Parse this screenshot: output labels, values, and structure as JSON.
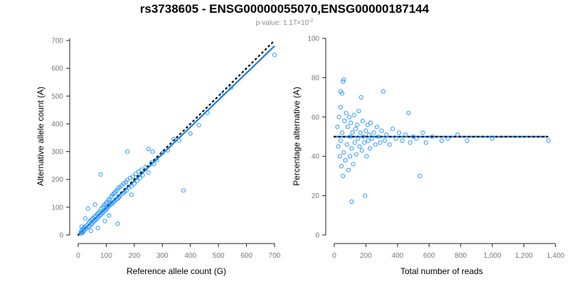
{
  "title": "rs3738605 - ENSG00000055070,ENSG00000187144",
  "subtitle": {
    "prefix": "p-value: 1.17×10",
    "exponent": "-2"
  },
  "colors": {
    "points": "#1e90ff",
    "fit_line": "#1e7fd4",
    "reference_line": "#000000"
  },
  "chart_data": [
    {
      "type": "scatter",
      "xlabel": "Reference allele count (G)",
      "ylabel": "Alternative allele count (A)",
      "xlim": [
        0,
        700
      ],
      "ylim": [
        0,
        700
      ],
      "xticks": [
        0,
        100,
        200,
        300,
        400,
        500,
        600,
        700
      ],
      "yticks": [
        0,
        100,
        200,
        300,
        400,
        500,
        600,
        700
      ],
      "xtick_labels": [
        "0",
        "100",
        "200",
        "300",
        "400",
        "500",
        "600",
        "700"
      ],
      "ytick_labels": [
        "0",
        "100",
        "200",
        "300",
        "400",
        "500",
        "600",
        "700"
      ],
      "grid": false,
      "fit_line": [
        [
          5,
          5
        ],
        [
          700,
          680
        ]
      ],
      "reference_line": [
        [
          0,
          0
        ],
        [
          700,
          700
        ]
      ],
      "points": [
        [
          8,
          6
        ],
        [
          10,
          14
        ],
        [
          12,
          9
        ],
        [
          15,
          20
        ],
        [
          18,
          12
        ],
        [
          20,
          25
        ],
        [
          22,
          17
        ],
        [
          25,
          30
        ],
        [
          28,
          22
        ],
        [
          30,
          35
        ],
        [
          12,
          30
        ],
        [
          15,
          8
        ],
        [
          35,
          28
        ],
        [
          38,
          45
        ],
        [
          40,
          32
        ],
        [
          42,
          50
        ],
        [
          45,
          38
        ],
        [
          48,
          55
        ],
        [
          50,
          42
        ],
        [
          52,
          60
        ],
        [
          55,
          48
        ],
        [
          58,
          65
        ],
        [
          60,
          52
        ],
        [
          62,
          70
        ],
        [
          65,
          58
        ],
        [
          68,
          75
        ],
        [
          70,
          62
        ],
        [
          72,
          80
        ],
        [
          75,
          68
        ],
        [
          78,
          85
        ],
        [
          80,
          72
        ],
        [
          82,
          95
        ],
        [
          85,
          78
        ],
        [
          88,
          100
        ],
        [
          90,
          82
        ],
        [
          92,
          108
        ],
        [
          95,
          88
        ],
        [
          98,
          112
        ],
        [
          100,
          92
        ],
        [
          102,
          118
        ],
        [
          105,
          98
        ],
        [
          108,
          125
        ],
        [
          110,
          105
        ],
        [
          112,
          130
        ],
        [
          115,
          110
        ],
        [
          118,
          138
        ],
        [
          120,
          112
        ],
        [
          122,
          145
        ],
        [
          125,
          118
        ],
        [
          128,
          150
        ],
        [
          130,
          122
        ],
        [
          132,
          155
        ],
        [
          135,
          128
        ],
        [
          138,
          160
        ],
        [
          140,
          130
        ],
        [
          142,
          168
        ],
        [
          145,
          135
        ],
        [
          148,
          172
        ],
        [
          150,
          142
        ],
        [
          155,
          178
        ],
        [
          160,
          150
        ],
        [
          162,
          185
        ],
        [
          165,
          155
        ],
        [
          170,
          190
        ],
        [
          172,
          160
        ],
        [
          175,
          198
        ],
        [
          180,
          170
        ],
        [
          185,
          205
        ],
        [
          190,
          175
        ],
        [
          195,
          210
        ],
        [
          200,
          185
        ],
        [
          205,
          220
        ],
        [
          210,
          195
        ],
        [
          215,
          228
        ],
        [
          220,
          205
        ],
        [
          225,
          235
        ],
        [
          230,
          215
        ],
        [
          240,
          245
        ],
        [
          250,
          225
        ],
        [
          260,
          260
        ],
        [
          270,
          255
        ],
        [
          280,
          270
        ],
        [
          300,
          295
        ],
        [
          320,
          305
        ],
        [
          340,
          345
        ],
        [
          360,
          340
        ],
        [
          400,
          365
        ],
        [
          430,
          395
        ],
        [
          460,
          440
        ],
        [
          510,
          505
        ],
        [
          545,
          530
        ],
        [
          700,
          648
        ],
        [
          80,
          218
        ],
        [
          175,
          300
        ],
        [
          375,
          160
        ],
        [
          140,
          40
        ],
        [
          95,
          50
        ],
        [
          60,
          110
        ],
        [
          35,
          95
        ],
        [
          70,
          25
        ],
        [
          250,
          310
        ],
        [
          190,
          145
        ],
        [
          45,
          15
        ],
        [
          25,
          60
        ],
        [
          110,
          70
        ],
        [
          265,
          300
        ]
      ]
    },
    {
      "type": "scatter",
      "xlabel": "Total number of reads",
      "ylabel": "Percentage alternative (A)",
      "xlim": [
        0,
        1400
      ],
      "ylim": [
        0,
        100
      ],
      "xticks": [
        0,
        200,
        400,
        600,
        800,
        1000,
        1200,
        1400
      ],
      "yticks": [
        0,
        20,
        40,
        60,
        80,
        100
      ],
      "xtick_labels": [
        "0",
        "200",
        "400",
        "600",
        "800",
        "1,000",
        "1,200",
        "1,400"
      ],
      "ytick_labels": [
        "0",
        "20",
        "40",
        "60",
        "80",
        "100"
      ],
      "grid": false,
      "fit_line": [
        [
          0,
          50
        ],
        [
          1350,
          50
        ]
      ],
      "reference_line": [
        [
          0,
          50
        ],
        [
          1350,
          50
        ]
      ],
      "points": [
        [
          20,
          55
        ],
        [
          25,
          45
        ],
        [
          30,
          60
        ],
        [
          35,
          40
        ],
        [
          40,
          65
        ],
        [
          40,
          48
        ],
        [
          45,
          35
        ],
        [
          50,
          52
        ],
        [
          50,
          72
        ],
        [
          55,
          78
        ],
        [
          60,
          79
        ],
        [
          60,
          42
        ],
        [
          65,
          58
        ],
        [
          70,
          38
        ],
        [
          75,
          62
        ],
        [
          80,
          46
        ],
        [
          85,
          55
        ],
        [
          90,
          33
        ],
        [
          95,
          60
        ],
        [
          100,
          50
        ],
        [
          100,
          40
        ],
        [
          105,
          57
        ],
        [
          110,
          44
        ],
        [
          115,
          52
        ],
        [
          120,
          36
        ],
        [
          125,
          61
        ],
        [
          130,
          47
        ],
        [
          135,
          54
        ],
        [
          140,
          41
        ],
        [
          145,
          56
        ],
        [
          150,
          49
        ],
        [
          155,
          63
        ],
        [
          160,
          45
        ],
        [
          165,
          52
        ],
        [
          170,
          70
        ],
        [
          175,
          43
        ],
        [
          180,
          58
        ],
        [
          185,
          50
        ],
        [
          190,
          47
        ],
        [
          195,
          20
        ],
        [
          200,
          53
        ],
        [
          205,
          40
        ],
        [
          210,
          56
        ],
        [
          215,
          48
        ],
        [
          220,
          51
        ],
        [
          225,
          44
        ],
        [
          230,
          57
        ],
        [
          240,
          49
        ],
        [
          250,
          52
        ],
        [
          260,
          46
        ],
        [
          270,
          55
        ],
        [
          280,
          50
        ],
        [
          290,
          47
        ],
        [
          300,
          53
        ],
        [
          310,
          73
        ],
        [
          320,
          48
        ],
        [
          330,
          51
        ],
        [
          350,
          46
        ],
        [
          370,
          54
        ],
        [
          390,
          49
        ],
        [
          410,
          52
        ],
        [
          430,
          48
        ],
        [
          450,
          51
        ],
        [
          470,
          62
        ],
        [
          480,
          47
        ],
        [
          500,
          50
        ],
        [
          520,
          49
        ],
        [
          540,
          30
        ],
        [
          560,
          52
        ],
        [
          580,
          47
        ],
        [
          620,
          50
        ],
        [
          680,
          48
        ],
        [
          720,
          49
        ],
        [
          780,
          51
        ],
        [
          840,
          48
        ],
        [
          1000,
          49
        ],
        [
          1355,
          48
        ],
        [
          110,
          17
        ],
        [
          55,
          30
        ],
        [
          40,
          73
        ]
      ]
    }
  ]
}
